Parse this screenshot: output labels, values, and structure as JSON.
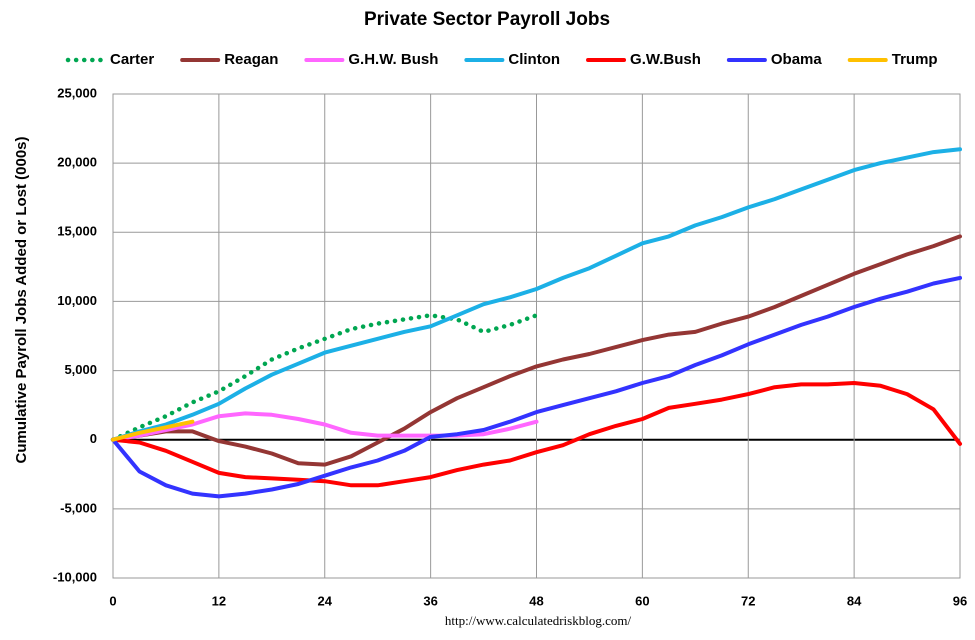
{
  "chart_data": {
    "type": "line",
    "title": "Private Sector Payroll Jobs",
    "y_label": "Cumulative Payroll Jobs Added or  Lost (000s)",
    "annotation": "http://www.calculatedriskblog.com/",
    "x": [
      0,
      3,
      6,
      9,
      12,
      15,
      18,
      21,
      24,
      27,
      30,
      33,
      36,
      39,
      42,
      45,
      48,
      51,
      54,
      57,
      60,
      63,
      66,
      69,
      72,
      75,
      78,
      81,
      84,
      87,
      90,
      93,
      96
    ],
    "xlim": [
      0,
      96
    ],
    "xticks": [
      0,
      12,
      24,
      36,
      48,
      60,
      72,
      84,
      96
    ],
    "ylim": [
      -10000,
      25000
    ],
    "yticks": [
      {
        "value": -10000,
        "label": "-10,000"
      },
      {
        "value": -5000,
        "label": "-5,000"
      },
      0,
      {
        "value": 5000,
        "label": "5,000"
      },
      {
        "value": 10000,
        "label": "10,000"
      },
      {
        "value": 15000,
        "label": "15,000"
      },
      {
        "value": 20000,
        "label": "20,000"
      },
      {
        "value": 25000,
        "label": "25,000"
      }
    ],
    "grid": true,
    "legend": "top",
    "series": [
      {
        "name": "Carter",
        "color": "#00a651",
        "dash": "dotted",
        "values": [
          0,
          900,
          1700,
          2700,
          3500,
          4600,
          5800,
          6600,
          7300,
          8000,
          8400,
          8700,
          9000,
          8700,
          7800,
          8300,
          9000,
          null,
          null,
          null,
          null,
          null,
          null,
          null,
          null,
          null,
          null,
          null,
          null,
          null,
          null,
          null,
          null
        ]
      },
      {
        "name": "Reagan",
        "color": "#943634",
        "dash": "solid",
        "values": [
          0,
          300,
          600,
          600,
          -100,
          -500,
          -1000,
          -1700,
          -1800,
          -1200,
          -200,
          800,
          2000,
          3000,
          3800,
          4600,
          5300,
          5800,
          6200,
          6700,
          7200,
          7600,
          7800,
          8400,
          8900,
          9600,
          10400,
          11200,
          12000,
          12700,
          13400,
          14000,
          14700
        ]
      },
      {
        "name": "G.H.W. Bush",
        "color": "#ff66ff",
        "dash": "solid",
        "values": [
          0,
          300,
          700,
          1100,
          1700,
          1900,
          1800,
          1500,
          1100,
          500,
          300,
          300,
          300,
          300,
          400,
          800,
          1300,
          null,
          null,
          null,
          null,
          null,
          null,
          null,
          null,
          null,
          null,
          null,
          null,
          null,
          null,
          null,
          null
        ]
      },
      {
        "name": "Clinton",
        "color": "#1cb0e6",
        "dash": "solid",
        "values": [
          0,
          600,
          1100,
          1800,
          2600,
          3700,
          4700,
          5500,
          6300,
          6800,
          7300,
          7800,
          8200,
          9000,
          9800,
          10300,
          10900,
          11700,
          12400,
          13300,
          14200,
          14700,
          15500,
          16100,
          16800,
          17400,
          18100,
          18800,
          19500,
          20000,
          20400,
          20800,
          21000
        ]
      },
      {
        "name": "G.W.Bush",
        "color": "#ff0000",
        "dash": "solid",
        "values": [
          0,
          -200,
          -800,
          -1600,
          -2400,
          -2700,
          -2800,
          -2900,
          -3000,
          -3300,
          -3300,
          -3000,
          -2700,
          -2200,
          -1800,
          -1500,
          -900,
          -400,
          400,
          1000,
          1500,
          2300,
          2600,
          2900,
          3300,
          3800,
          4000,
          4000,
          4100,
          3900,
          3300,
          2200,
          -300
        ]
      },
      {
        "name": "Obama",
        "color": "#3333ff",
        "dash": "solid",
        "values": [
          0,
          -2300,
          -3300,
          -3900,
          -4100,
          -3900,
          -3600,
          -3200,
          -2600,
          -2000,
          -1500,
          -800,
          200,
          400,
          700,
          1300,
          2000,
          2500,
          3000,
          3500,
          4100,
          4600,
          5400,
          6100,
          6900,
          7600,
          8300,
          8900,
          9600,
          10200,
          10700,
          11300,
          11700
        ]
      },
      {
        "name": "Trump",
        "color": "#ffc000",
        "dash": "solid",
        "values": [
          0,
          500,
          900,
          1300,
          null,
          null,
          null,
          null,
          null,
          null,
          null,
          null,
          null,
          null,
          null,
          null,
          null,
          null,
          null,
          null,
          null,
          null,
          null,
          null,
          null,
          null,
          null,
          null,
          null,
          null,
          null,
          null,
          null
        ]
      }
    ]
  }
}
